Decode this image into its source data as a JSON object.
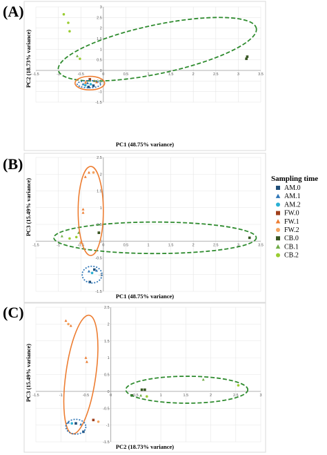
{
  "legend": {
    "title": "Sampling time",
    "items": [
      {
        "label": "AM.0",
        "color": "#1f4e79",
        "shape": "square"
      },
      {
        "label": "AM.1",
        "color": "#2e75b6",
        "shape": "triangle"
      },
      {
        "label": "AM.2",
        "color": "#2ab0d4",
        "shape": "circle"
      },
      {
        "label": "FW.0",
        "color": "#a0401c",
        "shape": "square"
      },
      {
        "label": "FW.1",
        "color": "#ed7d31",
        "shape": "triangle"
      },
      {
        "label": "FW.2",
        "color": "#f4a460",
        "shape": "circle"
      },
      {
        "label": "CB.0",
        "color": "#375623",
        "shape": "square"
      },
      {
        "label": "CB.1",
        "color": "#70ad47",
        "shape": "triangle"
      },
      {
        "label": "CB.2",
        "color": "#9acd32",
        "shape": "circle"
      }
    ]
  },
  "chart_data": [
    {
      "type": "scatter",
      "panel": "(A)",
      "xlabel": "PC1 (48.75% variance)",
      "ylabel": "PC2 (18.73% variance)",
      "xlim": [
        -1.5,
        3.5
      ],
      "ylim": [
        -1.5,
        3
      ],
      "xticks": [
        "-1.5",
        "-1",
        "-0.5",
        "0",
        "0.5",
        "1",
        "1.5",
        "2",
        "2.5",
        "3",
        "3.5"
      ],
      "yticks": [
        "-1.5",
        "-1",
        "-0.5",
        "0",
        "0.5",
        "1",
        "1.5",
        "2",
        "2.5",
        "3"
      ],
      "grid": true,
      "series": [
        {
          "name": "AM.0",
          "points": [
            [
              -0.33,
              -0.78
            ],
            [
              -0.22,
              -0.72
            ]
          ]
        },
        {
          "name": "AM.1",
          "points": [
            [
              -0.45,
              -0.65
            ],
            [
              -0.35,
              -0.6
            ]
          ]
        },
        {
          "name": "AM.2",
          "points": [
            [
              -0.4,
              -0.7
            ],
            [
              -0.28,
              -0.65
            ]
          ]
        },
        {
          "name": "FW.0",
          "points": [
            [
              -0.3,
              -0.42
            ]
          ]
        },
        {
          "name": "FW.1",
          "points": [
            [
              -0.15,
              -0.55
            ],
            [
              -0.4,
              -0.58
            ]
          ]
        },
        {
          "name": "FW.2",
          "points": [
            [
              -0.2,
              -0.5
            ],
            [
              -0.38,
              -0.52
            ]
          ]
        },
        {
          "name": "CB.0",
          "points": [
            [
              3.2,
              0.65
            ],
            [
              3.18,
              0.55
            ]
          ]
        },
        {
          "name": "CB.1",
          "points": [
            [
              -0.58,
              0.68
            ]
          ]
        },
        {
          "name": "CB.2",
          "points": [
            [
              -0.88,
              2.65
            ],
            [
              -0.78,
              2.25
            ],
            [
              -0.75,
              1.85
            ],
            [
              -0.52,
              0.55
            ]
          ]
        }
      ],
      "ellipses": [
        {
          "color": "#2e8b2e",
          "style": "dashed",
          "cx": 1.2,
          "cy": 1.0,
          "rx": 2.25,
          "ry": 1.15,
          "angle": -12
        },
        {
          "color": "#ed7d31",
          "style": "solid",
          "cx": -0.3,
          "cy": -0.6,
          "rx": 0.33,
          "ry": 0.32,
          "angle": 0
        },
        {
          "color": "#2e75b6",
          "style": "dotted",
          "cx": -0.32,
          "cy": -0.65,
          "rx": 0.26,
          "ry": 0.17,
          "angle": 0
        }
      ]
    },
    {
      "type": "scatter",
      "panel": "(B)",
      "xlabel": "PC1 (48.75% variance)",
      "ylabel": "PC3 (15.49% variance)",
      "xlim": [
        -1.5,
        3.5
      ],
      "ylim": [
        -1.5,
        2.5
      ],
      "xticks": [
        "-1.5",
        "-1",
        "-0.5",
        "0",
        "0.5",
        "1",
        "1.5",
        "2",
        "2.5",
        "3",
        "3.5"
      ],
      "yticks": [
        "-1.5",
        "-1",
        "-0.5",
        "0",
        "0.5",
        "1",
        "1.5",
        "2",
        "2.5"
      ],
      "grid": true,
      "series": [
        {
          "name": "AM.0",
          "points": [
            [
              -0.3,
              -1.22
            ],
            [
              -0.2,
              -0.85
            ]
          ]
        },
        {
          "name": "AM.1",
          "points": [
            [
              -0.32,
              -0.9
            ],
            [
              -0.15,
              -0.88
            ]
          ]
        },
        {
          "name": "AM.2",
          "points": [
            [
              -0.25,
              -0.95
            ]
          ]
        },
        {
          "name": "FW.0",
          "points": [
            [
              -0.1,
              0.25
            ]
          ]
        },
        {
          "name": "FW.1",
          "points": [
            [
              -0.45,
              0.95
            ],
            [
              -0.45,
              0.85
            ],
            [
              -0.32,
              2.05
            ],
            [
              -0.4,
              1.92
            ]
          ]
        },
        {
          "name": "FW.2",
          "points": [
            [
              -0.22,
              2.05
            ],
            [
              -0.5,
              -0.05
            ]
          ]
        },
        {
          "name": "CB.0",
          "points": [
            [
              3.25,
              0.1
            ],
            [
              -0.1,
              0.25
            ]
          ]
        },
        {
          "name": "CB.1",
          "points": [
            [
              -0.92,
              0.15
            ],
            [
              -0.55,
              0.25
            ]
          ]
        },
        {
          "name": "CB.2",
          "points": [
            [
              -0.75,
              0.08
            ],
            [
              -0.6,
              0.12
            ]
          ]
        }
      ],
      "ellipses": [
        {
          "color": "#2e8b2e",
          "style": "dashed",
          "cx": 1.15,
          "cy": 0.1,
          "rx": 2.25,
          "ry": 0.47,
          "angle": 0
        },
        {
          "color": "#ed7d31",
          "style": "solid",
          "cx": -0.28,
          "cy": 0.9,
          "rx": 0.28,
          "ry": 1.33,
          "angle": 0
        },
        {
          "color": "#2e75b6",
          "style": "dotted",
          "cx": -0.25,
          "cy": -1.0,
          "rx": 0.22,
          "ry": 0.25,
          "angle": 0
        }
      ]
    },
    {
      "type": "scatter",
      "panel": "(C)",
      "xlabel": "PC2 (18.73% variance)",
      "ylabel": "PC3 (15.49% variance)",
      "xlim": [
        -1.5,
        3
      ],
      "ylim": [
        -1.5,
        2.5
      ],
      "xticks": [
        "-1.5",
        "-1",
        "-0.5",
        "0",
        "0.5",
        "1",
        "1.5",
        "2",
        "2.5",
        "3"
      ],
      "yticks": [
        "-1.5",
        "-1",
        "-0.5",
        "0",
        "0.5",
        "1",
        "1.5",
        "2",
        "2.5"
      ],
      "grid": true,
      "series": [
        {
          "name": "AM.0",
          "points": [
            [
              -0.55,
              -1.2
            ],
            [
              -0.7,
              -0.95
            ]
          ]
        },
        {
          "name": "AM.1",
          "points": [
            [
              -0.85,
              -0.92
            ],
            [
              -0.6,
              -0.98
            ]
          ]
        },
        {
          "name": "AM.2",
          "points": [
            [
              -0.78,
              -0.95
            ]
          ]
        },
        {
          "name": "FW.0",
          "points": [
            [
              -0.35,
              -0.85
            ]
          ]
        },
        {
          "name": "FW.1",
          "points": [
            [
              -0.9,
              2.1
            ],
            [
              -0.8,
              1.95
            ],
            [
              -0.5,
              1.0
            ],
            [
              -0.48,
              0.88
            ]
          ]
        },
        {
          "name": "FW.2",
          "points": [
            [
              -0.85,
              2.0
            ],
            [
              -0.25,
              -0.9
            ]
          ]
        },
        {
          "name": "CB.0",
          "points": [
            [
              0.62,
              0.05
            ],
            [
              0.68,
              0.05
            ],
            [
              0.42,
              -0.12
            ]
          ]
        },
        {
          "name": "CB.1",
          "points": [
            [
              1.85,
              0.35
            ],
            [
              0.6,
              -0.12
            ]
          ]
        },
        {
          "name": "CB.2",
          "points": [
            [
              2.55,
              0.18
            ],
            [
              0.72,
              -0.15
            ]
          ]
        }
      ],
      "ellipses": [
        {
          "color": "#2e8b2e",
          "style": "dashed",
          "cx": 1.52,
          "cy": 0.05,
          "rx": 1.22,
          "ry": 0.4,
          "angle": 0
        },
        {
          "color": "#ed7d31",
          "style": "solid",
          "cx": -0.6,
          "cy": 0.5,
          "rx": 0.3,
          "ry": 1.78,
          "angle": 8
        },
        {
          "color": "#2e75b6",
          "style": "dotted",
          "cx": -0.7,
          "cy": -1.05,
          "rx": 0.2,
          "ry": 0.22,
          "angle": 0
        }
      ]
    }
  ]
}
